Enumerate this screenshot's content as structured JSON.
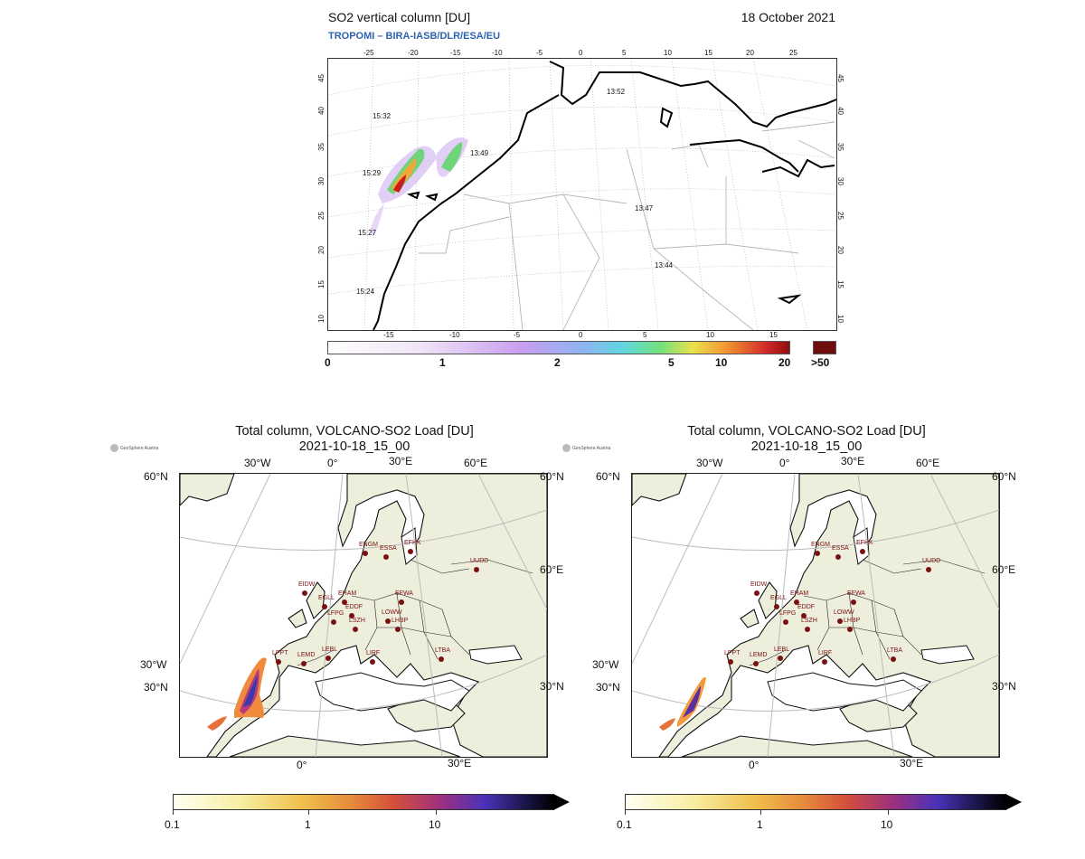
{
  "top": {
    "title": "SO2 vertical column [DU]",
    "date": "18 October 2021",
    "credit": "TROPOMI  –  BIRA-IASB/DLR/ESA/EU",
    "top_ticks": [
      "-25",
      "-20",
      "-15",
      "-10",
      "-5",
      "0",
      "5",
      "10",
      "15",
      "20",
      "25"
    ],
    "bottom_ticks": [
      "-15",
      "-10",
      "-5",
      "0",
      "5",
      "10",
      "15"
    ],
    "left_ticks": [
      "45",
      "40",
      "35",
      "30",
      "25",
      "20",
      "15",
      "10"
    ],
    "right_ticks": [
      "45",
      "40",
      "35",
      "30",
      "25",
      "20",
      "15",
      "10"
    ],
    "times": [
      "13:52",
      "15:32",
      "13:49",
      "15:29",
      "13:47",
      "15:27",
      "13:44",
      "15:24"
    ],
    "colorbar_labels": [
      "0",
      "1",
      "2",
      "5",
      "10",
      "20",
      ">50"
    ]
  },
  "panels": [
    {
      "title": "Total column, VOLCANO-SO2 Load [DU]",
      "subtitle": "2021-10-18_15_00",
      "logo": "GeoSphere Austria",
      "geo_labels": [
        "30°W",
        "0°",
        "30°E",
        "60°E",
        "60°N",
        "60°N",
        "60°E",
        "30°W",
        "30°N",
        "30°N",
        "0°",
        "30°E"
      ],
      "stations": [
        "ENGM",
        "ESSA",
        "EFHK",
        "UUDD",
        "EIDW",
        "EGLL",
        "EHAM",
        "EDDF",
        "EFWA",
        "LFPG",
        "LSZH",
        "LOWW",
        "LHBP",
        "LPPT",
        "LEMD",
        "LEBL",
        "LIRF",
        "LTBA"
      ],
      "colorbar_labels": [
        "0.1",
        "1",
        "10"
      ]
    },
    {
      "title": "Total column, VOLCANO-SO2 Load [DU]",
      "subtitle": "2021-10-18_15_00",
      "logo": "GeoSphere Austria",
      "geo_labels": [
        "30°W",
        "0°",
        "30°E",
        "60°E",
        "60°N",
        "60°N",
        "60°E",
        "30°W",
        "30°N",
        "30°N",
        "0°",
        "30°E"
      ],
      "stations": [
        "ENGM",
        "ESSA",
        "EFHK",
        "UUDD",
        "EIDW",
        "EGLL",
        "EHAM",
        "EDDF",
        "EFWA",
        "LFPG",
        "LSZH",
        "LOWW",
        "LHBP",
        "LPPT",
        "LEMD",
        "LEBL",
        "LIRF",
        "LTBA"
      ],
      "colorbar_labels": [
        "0.1",
        "1",
        "10"
      ]
    }
  ]
}
